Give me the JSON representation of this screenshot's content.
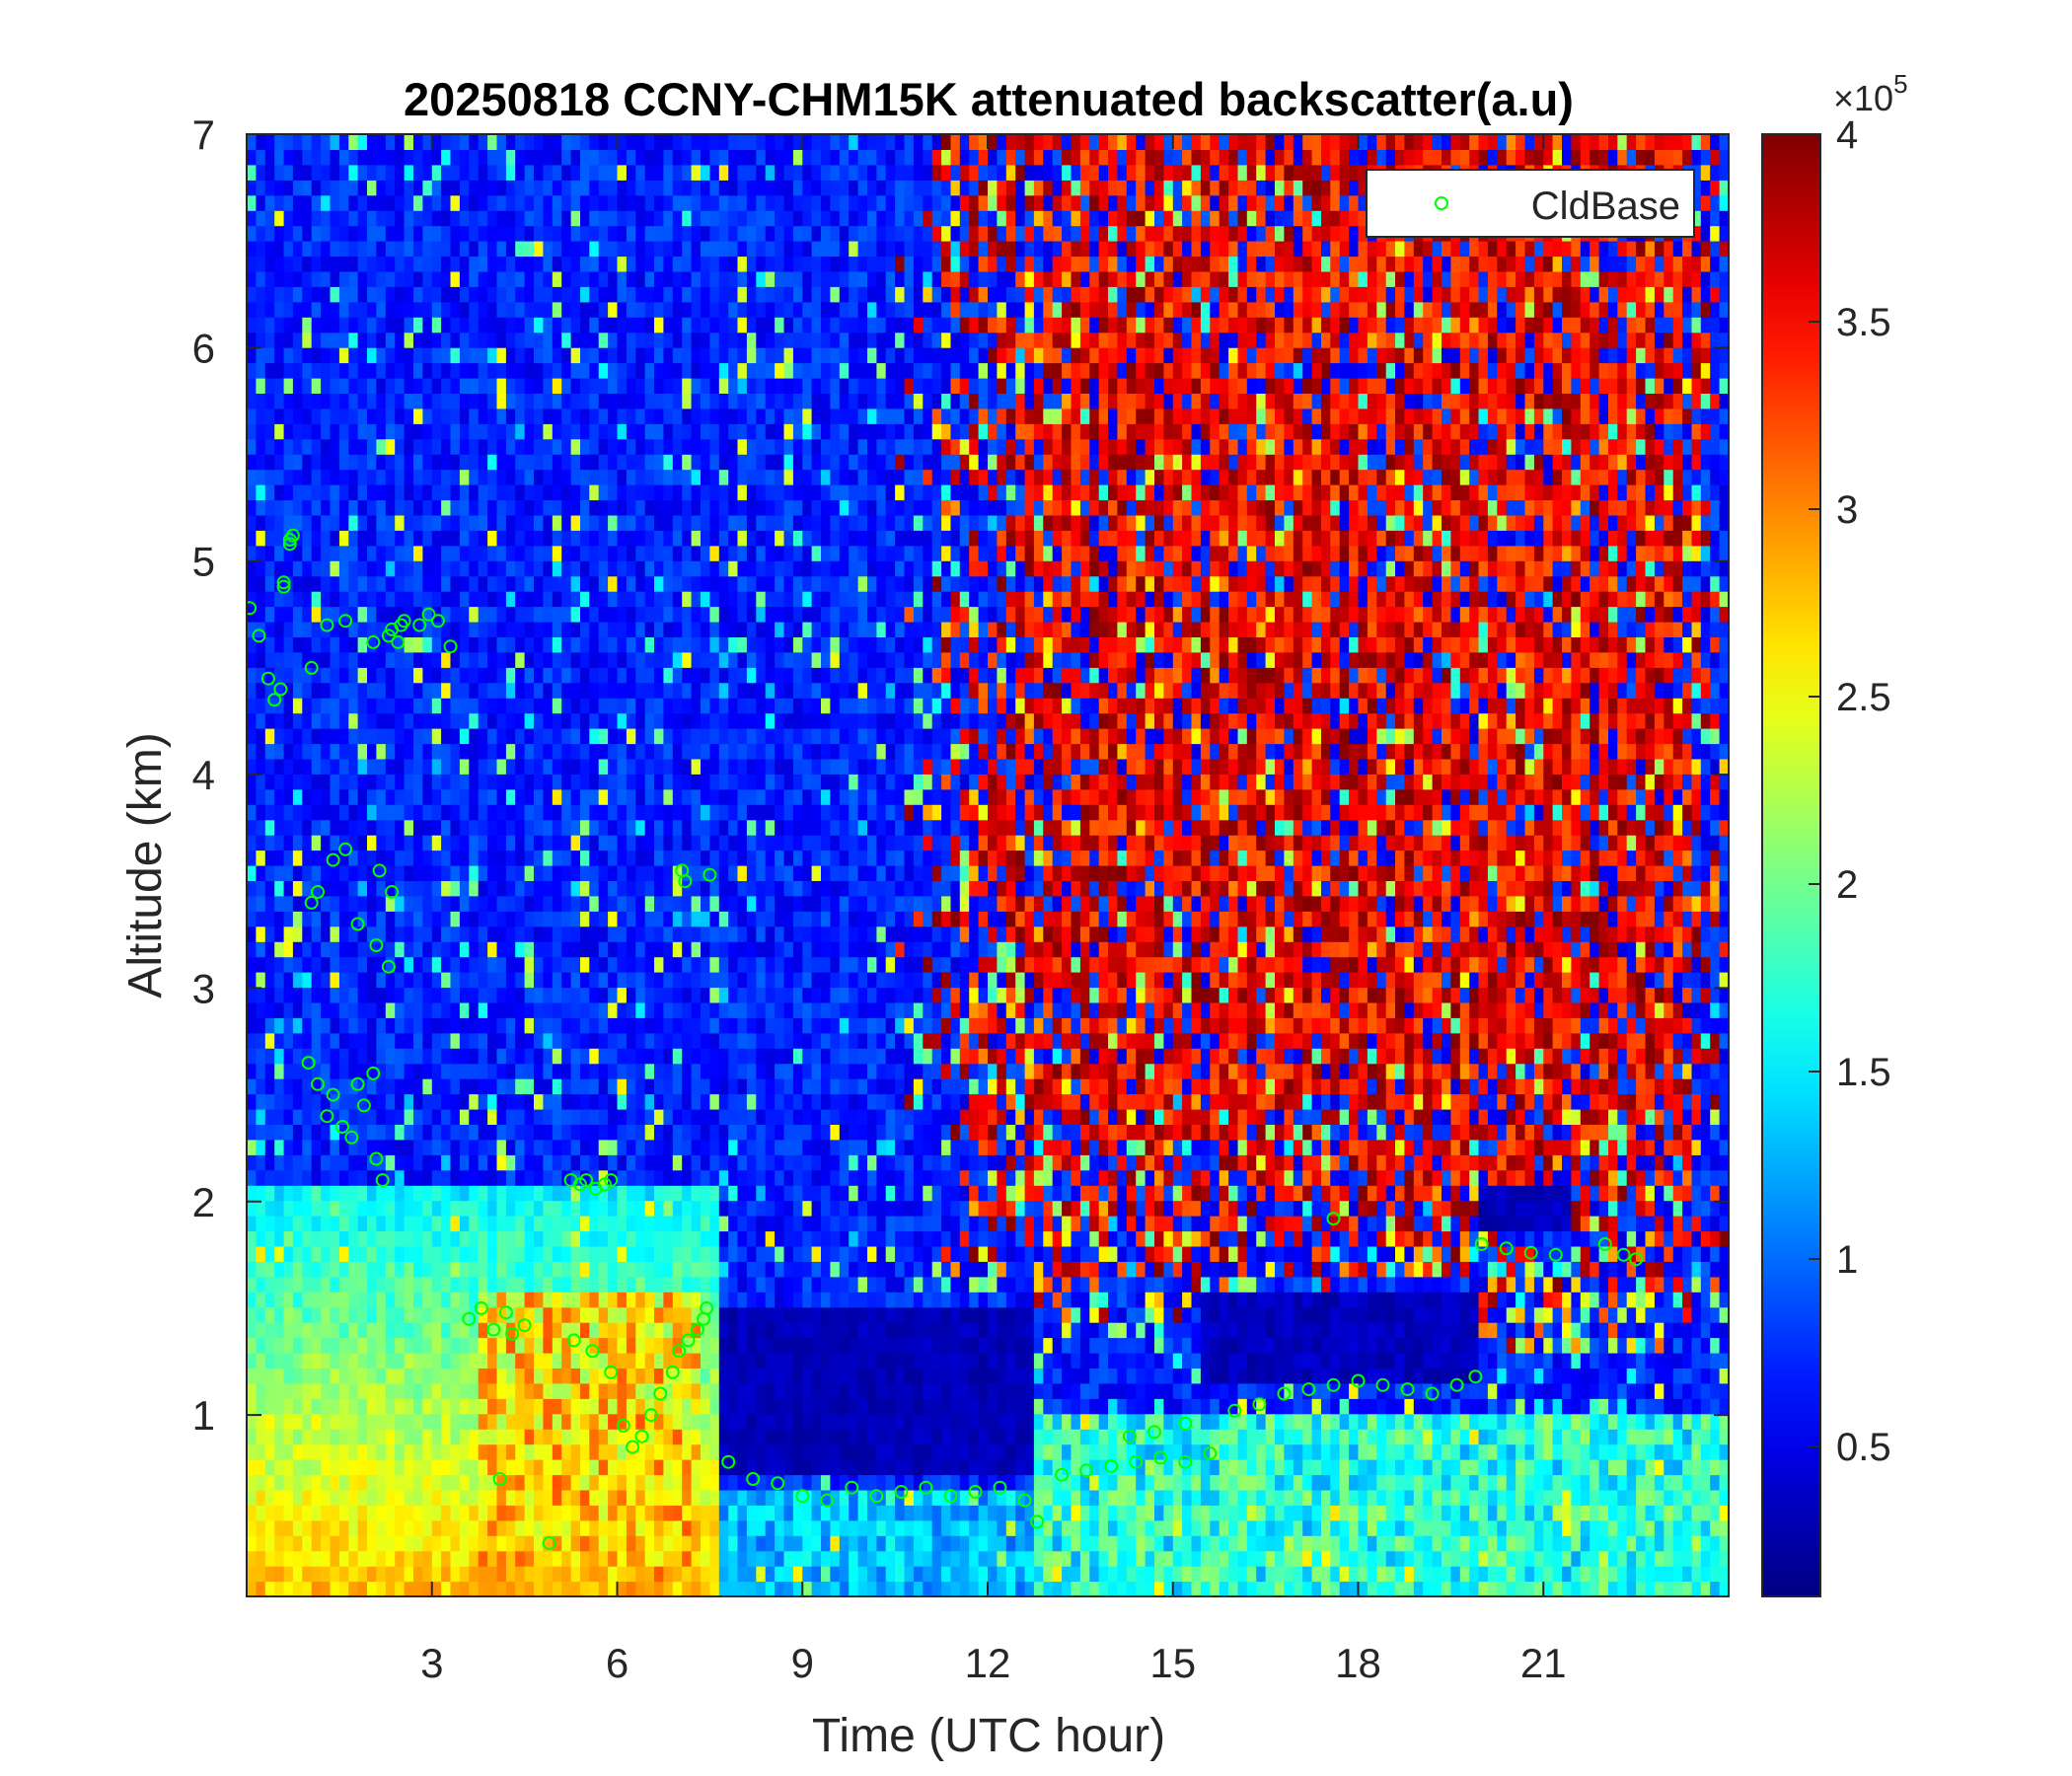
{
  "chart_data": {
    "type": "heatmap",
    "title": "20250818 CCNY-CHM15K attenuated backscatter(a.u)",
    "xlabel": "Time (UTC hour)",
    "ylabel": "Altitude (km)",
    "xlim": [
      0,
      24
    ],
    "ylim": [
      0.15,
      7
    ],
    "xticks": [
      "3",
      "6",
      "9",
      "12",
      "15",
      "18",
      "21"
    ],
    "xtick_values": [
      3,
      6,
      9,
      12,
      15,
      18,
      21
    ],
    "yticks": [
      "1",
      "2",
      "3",
      "4",
      "5",
      "6",
      "7"
    ],
    "ytick_values": [
      1,
      2,
      3,
      4,
      5,
      6,
      7
    ],
    "colorbar": {
      "colormap": "jet",
      "clim": [
        10000,
        400000
      ],
      "exponent_label": "×10",
      "exponent_power": "5",
      "tick_values": [
        0.5,
        1,
        1.5,
        2,
        2.5,
        3,
        3.5,
        4
      ],
      "ticks": [
        "0.5",
        "1",
        "1.5",
        "2",
        "2.5",
        "3",
        "3.5",
        "4"
      ]
    },
    "legend": {
      "entries": [
        "CldBase"
      ],
      "placement": "top-right",
      "marker_color": "#00ff00"
    },
    "series": [
      {
        "name": "CldBase",
        "marker": "circle",
        "color": "#00ff00",
        "x": [
          0.05,
          0.2,
          0.35,
          0.45,
          0.55,
          0.6,
          0.7,
          0.75,
          0.7,
          0.6,
          1.05,
          1.3,
          1.6,
          2.05,
          2.3,
          2.5,
          2.55,
          2.35,
          2.45,
          2.8,
          2.95,
          3.1,
          3.3,
          1.0,
          1.15,
          1.3,
          1.4,
          1.55,
          1.7,
          1.8,
          1.9,
          2.05,
          2.1,
          2.2,
          1.05,
          1.15,
          1.4,
          1.6,
          1.8,
          2.1,
          2.15,
          2.3,
          2.35,
          3.6,
          3.8,
          4.0,
          4.2,
          4.3,
          4.5,
          5.25,
          5.4,
          5.5,
          5.65,
          5.8,
          5.9,
          5.3,
          5.6,
          5.9,
          6.1,
          6.25,
          6.4,
          6.55,
          6.7,
          6.9,
          7.0,
          7.15,
          7.3,
          7.4,
          7.45,
          7.05,
          7.1,
          7.5,
          4.1,
          4.9,
          7.8,
          8.2,
          8.6,
          9.0,
          9.4,
          9.8,
          10.2,
          10.6,
          11.0,
          11.4,
          11.8,
          12.2,
          12.6,
          12.8,
          13.2,
          13.6,
          14.0,
          14.4,
          14.8,
          15.2,
          15.6,
          14.3,
          14.7,
          15.2,
          16.0,
          16.4,
          16.8,
          17.2,
          17.6,
          18.0,
          18.4,
          18.8,
          19.2,
          19.6,
          19.9,
          17.6,
          20.0,
          20.4,
          20.8,
          21.2,
          22.0,
          22.3,
          22.5
        ],
        "y": [
          4.78,
          4.65,
          4.45,
          4.35,
          4.4,
          4.9,
          5.1,
          5.12,
          5.08,
          4.88,
          4.5,
          4.7,
          4.72,
          4.62,
          4.65,
          4.7,
          4.72,
          4.68,
          4.62,
          4.7,
          4.75,
          4.72,
          4.6,
          2.65,
          2.55,
          2.4,
          2.5,
          2.35,
          2.3,
          2.55,
          2.45,
          2.6,
          2.2,
          2.1,
          3.4,
          3.45,
          3.6,
          3.65,
          3.3,
          3.2,
          3.55,
          3.1,
          3.45,
          1.45,
          1.5,
          1.4,
          1.48,
          1.38,
          1.42,
          2.1,
          2.08,
          2.1,
          2.06,
          2.08,
          2.1,
          1.35,
          1.3,
          1.2,
          0.95,
          0.85,
          0.9,
          1.0,
          1.1,
          1.2,
          1.3,
          1.35,
          1.4,
          1.45,
          1.5,
          3.55,
          3.5,
          3.53,
          0.7,
          0.4,
          0.78,
          0.7,
          0.68,
          0.62,
          0.6,
          0.66,
          0.62,
          0.64,
          0.66,
          0.62,
          0.64,
          0.66,
          0.6,
          0.5,
          0.72,
          0.74,
          0.76,
          0.78,
          0.8,
          0.78,
          0.82,
          0.9,
          0.92,
          0.96,
          1.02,
          1.05,
          1.1,
          1.12,
          1.14,
          1.16,
          1.14,
          1.12,
          1.1,
          1.14,
          1.18,
          1.92,
          1.8,
          1.78,
          1.76,
          1.75,
          1.8,
          1.75,
          1.73
        ]
      }
    ]
  }
}
